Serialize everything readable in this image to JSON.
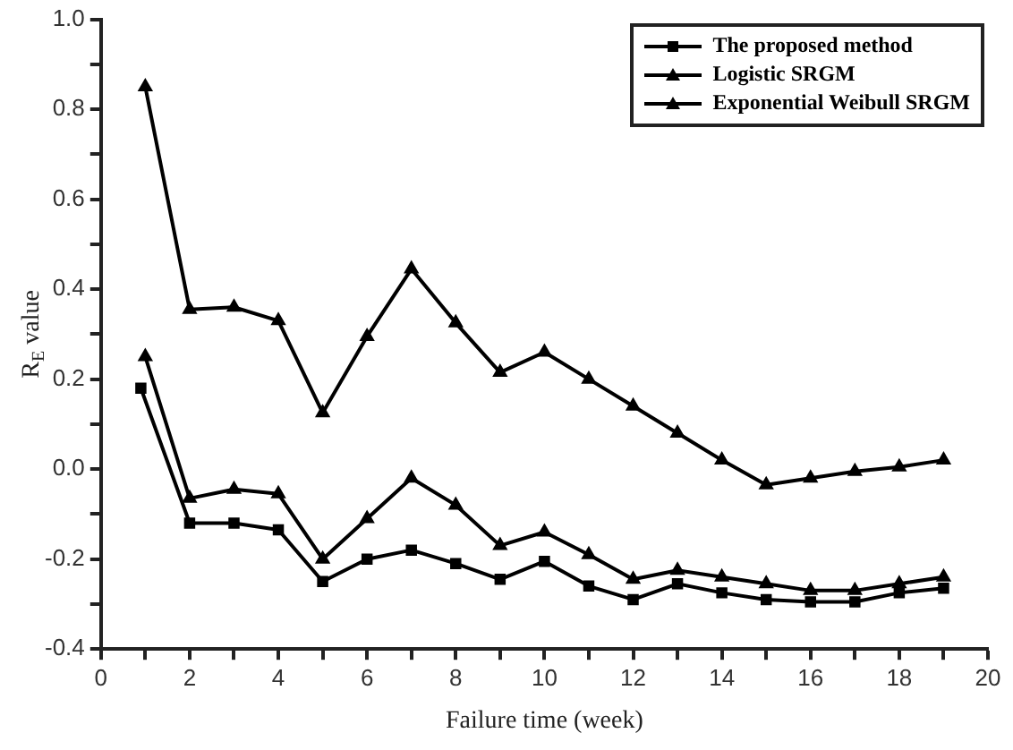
{
  "chart_data": {
    "type": "line",
    "xlabel": "Failure time (week)",
    "ylabel": "R$_{E}$ value",
    "xlim": [
      0,
      20
    ],
    "xticks": [
      0,
      {
        "value": 1,
        "label": null
      },
      2,
      {
        "value": 3,
        "label": null
      },
      4,
      {
        "value": 5,
        "label": null
      },
      6,
      {
        "value": 7,
        "label": null
      },
      8,
      {
        "value": 9,
        "label": null
      },
      10,
      {
        "value": 11,
        "label": null
      },
      12,
      {
        "value": 13,
        "label": null
      },
      14,
      {
        "value": 15,
        "label": null
      },
      16,
      {
        "value": 17,
        "label": null
      },
      18,
      {
        "value": 19,
        "label": null
      },
      20
    ],
    "ylim": [
      -0.4,
      1.0
    ],
    "yticks": [
      {
        "value": -0.4,
        "label": "-0.4"
      },
      {
        "value": -0.3,
        "label": null
      },
      {
        "value": -0.2,
        "label": "-0.2"
      },
      {
        "value": -0.1,
        "label": null
      },
      {
        "value": 0,
        "label": "0.0"
      },
      {
        "value": 0.1,
        "label": null
      },
      {
        "value": 0.2,
        "label": "0.2"
      },
      {
        "value": 0.3,
        "label": null
      },
      {
        "value": 0.4,
        "label": "0.4"
      },
      {
        "value": 0.5,
        "label": null
      },
      {
        "value": 0.6,
        "label": "0.6"
      },
      {
        "value": 0.7,
        "label": null
      },
      {
        "value": 0.8,
        "label": "0.8"
      },
      {
        "value": 0.9,
        "label": null
      },
      {
        "value": 1.0,
        "label": "1.0"
      }
    ],
    "grid": false,
    "legend": "top right",
    "line_style": "solid",
    "series": [
      {
        "name": "The proposed method",
        "color": "#000000",
        "marker": "square",
        "x": [
          0.9,
          2,
          3,
          4,
          5,
          6,
          7,
          8,
          9,
          10,
          11,
          12,
          13,
          14,
          15,
          16,
          17,
          18,
          19
        ],
        "values": [
          0.18,
          -0.12,
          -0.12,
          -0.135,
          -0.25,
          -0.2,
          -0.18,
          -0.21,
          -0.245,
          -0.205,
          -0.26,
          -0.29,
          -0.255,
          -0.275,
          -0.29,
          -0.295,
          -0.295,
          -0.275,
          -0.265
        ]
      },
      {
        "name": "Logistic SRGM",
        "color": "#000000",
        "marker": "triangle",
        "x": [
          1,
          2,
          3,
          4,
          5,
          6,
          7,
          8,
          9,
          10,
          11,
          12,
          13,
          14,
          15,
          16,
          17,
          18,
          19
        ],
        "values": [
          0.25,
          -0.065,
          -0.045,
          -0.055,
          -0.2,
          -0.11,
          -0.02,
          -0.08,
          -0.17,
          -0.14,
          -0.19,
          -0.245,
          -0.225,
          -0.24,
          -0.255,
          -0.27,
          -0.27,
          -0.255,
          -0.24
        ]
      },
      {
        "name": "Exponential Weibull SRGM",
        "color": "#000000",
        "marker": "triangle",
        "x": [
          1,
          2,
          3,
          4,
          5,
          6,
          7,
          8,
          9,
          10,
          11,
          12,
          13,
          14,
          15,
          16,
          17,
          18,
          19
        ],
        "values": [
          0.85,
          0.355,
          0.36,
          0.33,
          0.125,
          0.295,
          0.445,
          0.325,
          0.215,
          0.26,
          0.2,
          0.14,
          0.08,
          0.02,
          -0.035,
          -0.02,
          -0.005,
          0.005,
          0.02
        ]
      }
    ]
  }
}
